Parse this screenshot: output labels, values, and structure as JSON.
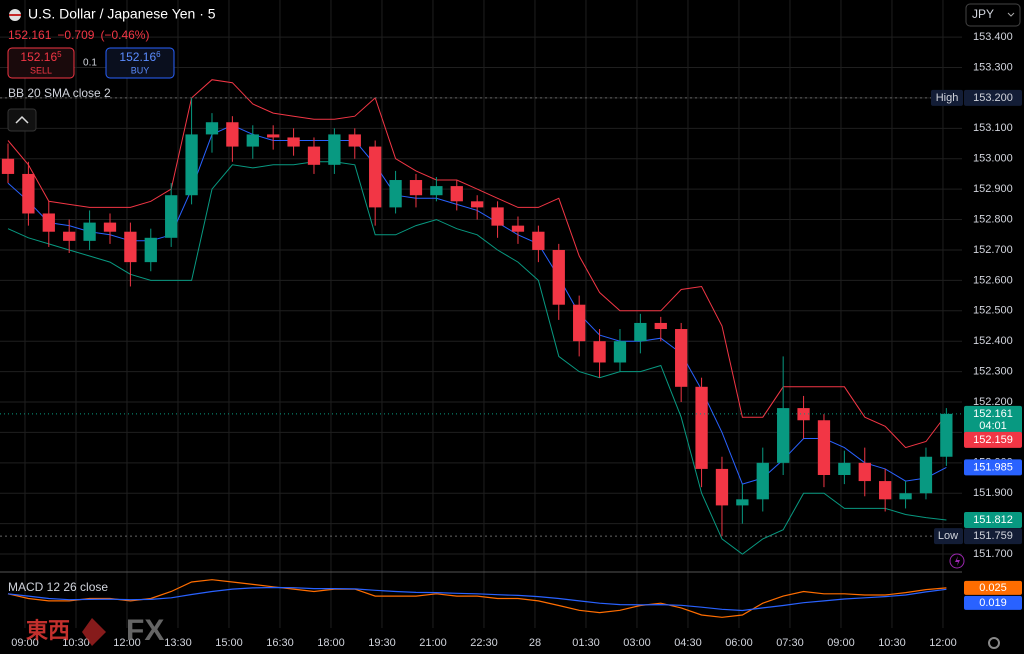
{
  "header": {
    "title": "U.S. Dollar / Japanese Yen · 5",
    "last": "152.161",
    "change": "−0.709",
    "change_pct": "(−0.46%)"
  },
  "trade": {
    "sell": {
      "price": "152.16",
      "pip": "5",
      "label": "SELL"
    },
    "spread": "0.1",
    "buy": {
      "price": "152.16",
      "pip": "6",
      "label": "BUY"
    }
  },
  "currency": "JPY",
  "watermark": {
    "cn": "東西",
    "fx": "FX"
  },
  "chart_data": [
    {
      "type": "candlestick",
      "title": "BB 20 SMA close 2",
      "x": [
        -0.5,
        0.1,
        0.7,
        1.3,
        1.9,
        2.5,
        3.1,
        3.7,
        4.3,
        4.9,
        5.5,
        6.1,
        6.7,
        7.3,
        7.9,
        8.5,
        9.1,
        9.7,
        10.3,
        10.9,
        11.5,
        12.1,
        12.7,
        13.3,
        13.9,
        14.5,
        15.1,
        15.7,
        16.3,
        16.9,
        17.5,
        18.1,
        18.7,
        19.3,
        19.9,
        20.5,
        21.1,
        21.7,
        22.3,
        22.9,
        23.5,
        24.1,
        24.7,
        25.3,
        25.9,
        26.5,
        27.1
      ],
      "open": [
        153.0,
        152.95,
        152.82,
        152.76,
        152.73,
        152.79,
        152.76,
        152.66,
        152.74,
        152.88,
        153.08,
        153.12,
        153.04,
        153.08,
        153.07,
        153.04,
        152.98,
        153.08,
        153.04,
        152.84,
        152.93,
        152.88,
        152.91,
        152.86,
        152.84,
        152.78,
        152.76,
        152.7,
        152.52,
        152.4,
        152.33,
        152.4,
        152.46,
        152.44,
        152.25,
        151.98,
        151.86,
        151.88,
        152.0,
        152.18,
        152.14,
        151.96,
        152.0,
        151.94,
        151.88,
        151.9,
        152.02
      ],
      "high": [
        153.05,
        152.99,
        152.86,
        152.8,
        152.83,
        152.82,
        152.79,
        152.77,
        152.92,
        153.2,
        153.15,
        153.14,
        153.11,
        153.11,
        153.1,
        153.07,
        153.1,
        153.1,
        153.06,
        152.96,
        152.95,
        152.94,
        152.93,
        152.88,
        152.86,
        152.81,
        152.78,
        152.72,
        152.55,
        152.44,
        152.44,
        152.49,
        152.48,
        152.46,
        152.28,
        152.02,
        151.93,
        152.05,
        152.35,
        152.22,
        152.16,
        152.04,
        152.05,
        151.98,
        151.94,
        152.05,
        152.18
      ],
      "low": [
        152.92,
        152.78,
        152.71,
        152.69,
        152.7,
        152.72,
        152.58,
        152.63,
        152.71,
        152.85,
        153.02,
        152.99,
        153.0,
        153.03,
        153.01,
        152.95,
        152.95,
        153.0,
        152.78,
        152.82,
        152.84,
        152.86,
        152.83,
        152.8,
        152.74,
        152.72,
        152.66,
        152.47,
        152.35,
        152.28,
        152.3,
        152.36,
        152.4,
        152.2,
        151.92,
        151.759,
        151.8,
        151.84,
        151.96,
        152.08,
        151.92,
        151.93,
        151.89,
        151.84,
        151.85,
        151.88,
        151.99
      ],
      "close": [
        152.95,
        152.82,
        152.76,
        152.73,
        152.79,
        152.76,
        152.66,
        152.74,
        152.88,
        153.08,
        153.12,
        153.04,
        153.08,
        153.07,
        153.04,
        152.98,
        153.08,
        153.04,
        152.84,
        152.93,
        152.88,
        152.91,
        152.86,
        152.84,
        152.78,
        152.76,
        152.7,
        152.52,
        152.4,
        152.33,
        152.4,
        152.46,
        152.44,
        152.25,
        151.98,
        151.86,
        151.88,
        152.0,
        152.18,
        152.14,
        151.96,
        152.0,
        151.94,
        151.88,
        151.9,
        152.02,
        152.161
      ],
      "up_color": "#089981",
      "down_color": "#f23645",
      "bands": [
        {
          "color": "#f23645",
          "values": [
            153.06,
            152.98,
            152.86,
            152.85,
            152.84,
            152.84,
            152.84,
            152.86,
            152.9,
            153.2,
            153.26,
            153.25,
            153.18,
            153.15,
            153.14,
            153.13,
            153.13,
            153.14,
            153.2,
            153.0,
            152.96,
            152.93,
            152.93,
            152.9,
            152.87,
            152.84,
            152.84,
            152.87,
            152.68,
            152.56,
            152.5,
            152.5,
            152.5,
            152.57,
            152.58,
            152.45,
            152.15,
            152.15,
            152.25,
            152.25,
            152.25,
            152.25,
            152.15,
            152.12,
            152.05,
            152.07,
            152.159
          ]
        },
        {
          "color": "#2962ff",
          "values": [
            152.92,
            152.86,
            152.79,
            152.78,
            152.76,
            152.75,
            152.73,
            152.73,
            152.75,
            152.9,
            153.08,
            153.11,
            153.08,
            153.06,
            153.06,
            153.06,
            153.06,
            153.06,
            152.98,
            152.88,
            152.87,
            152.87,
            152.85,
            152.83,
            152.79,
            152.75,
            152.72,
            152.61,
            152.49,
            152.42,
            152.4,
            152.4,
            152.41,
            152.36,
            152.24,
            152.1,
            151.93,
            151.95,
            152.01,
            152.08,
            152.08,
            152.05,
            152.0,
            151.98,
            151.94,
            151.95,
            151.985
          ]
        },
        {
          "color": "#089981",
          "values": [
            152.77,
            152.74,
            152.72,
            152.7,
            152.68,
            152.66,
            152.62,
            152.6,
            152.6,
            152.6,
            152.9,
            152.98,
            152.97,
            152.98,
            152.98,
            152.99,
            152.99,
            152.98,
            152.75,
            152.75,
            152.78,
            152.8,
            152.77,
            152.75,
            152.7,
            152.66,
            152.6,
            152.35,
            152.3,
            152.28,
            152.3,
            152.3,
            152.32,
            152.15,
            151.9,
            151.75,
            151.7,
            151.75,
            151.78,
            151.9,
            151.9,
            151.85,
            151.85,
            151.85,
            151.83,
            151.82,
            151.812
          ]
        }
      ],
      "xlim": [
        -0.735,
        27.56
      ],
      "xticks": [
        {
          "value": 0,
          "label": "09:00"
        },
        {
          "value": 1.5,
          "label": "10:30"
        },
        {
          "value": 3,
          "label": "12:00"
        },
        {
          "value": 4.5,
          "label": "13:30"
        },
        {
          "value": 6,
          "label": "15:00"
        },
        {
          "value": 7.5,
          "label": "16:30"
        },
        {
          "value": 9,
          "label": "18:00"
        },
        {
          "value": 10.5,
          "label": "19:30"
        },
        {
          "value": 12,
          "label": "21:00"
        },
        {
          "value": 13.5,
          "label": "22:30"
        },
        {
          "value": 15,
          "label": "28"
        },
        {
          "value": 16.5,
          "label": "01:30"
        },
        {
          "value": 18,
          "label": "03:00"
        },
        {
          "value": 19.5,
          "label": "04:30"
        },
        {
          "value": 21,
          "label": "06:00"
        },
        {
          "value": 22.5,
          "label": "07:30"
        },
        {
          "value": 24,
          "label": "09:00"
        },
        {
          "value": 25.5,
          "label": "10:30"
        },
        {
          "value": 27,
          "label": "12:00"
        }
      ],
      "ylim": [
        151.641,
        153.522
      ],
      "yticks": [
        {
          "value": 151.7,
          "label": "151.700"
        },
        {
          "value": 151.8,
          "label": "151.800"
        },
        {
          "value": 151.9,
          "label": "151.900"
        },
        {
          "value": 152.0,
          "label": "152.000"
        },
        {
          "value": 152.1,
          "label": "152.100"
        },
        {
          "value": 152.2,
          "label": "152.200"
        },
        {
          "value": 152.3,
          "label": "152.300"
        },
        {
          "value": 152.4,
          "label": "152.400"
        },
        {
          "value": 152.5,
          "label": "152.500"
        },
        {
          "value": 152.6,
          "label": "152.600"
        },
        {
          "value": 152.7,
          "label": "152.700"
        },
        {
          "value": 152.8,
          "label": "152.800"
        },
        {
          "value": 152.9,
          "label": "152.900"
        },
        {
          "value": 153.0,
          "label": "153.000"
        },
        {
          "value": 153.1,
          "label": "153.100"
        },
        {
          "value": 153.2,
          "label": "153.200"
        },
        {
          "value": 153.3,
          "label": "153.300"
        },
        {
          "value": 153.4,
          "label": "153.400"
        }
      ],
      "grid": true,
      "high_marker": {
        "label": "High",
        "value": 153.2,
        "value_label": "153.200"
      },
      "low_marker": {
        "label": "Low",
        "value": 151.759
      },
      "countdown": "04:01"
    },
    {
      "type": "line",
      "title": "MACD 12 26 close",
      "ylim": [
        -0.12,
        0.08
      ],
      "series": [
        {
          "color": "#ff6d00",
          "values": [
            0.0,
            -0.02,
            -0.03,
            -0.03,
            -0.02,
            -0.02,
            -0.03,
            -0.02,
            0.01,
            0.05,
            0.06,
            0.05,
            0.04,
            0.03,
            0.02,
            0.01,
            0.02,
            0.02,
            -0.01,
            -0.01,
            -0.01,
            0.0,
            -0.01,
            -0.01,
            -0.02,
            -0.02,
            -0.03,
            -0.05,
            -0.07,
            -0.08,
            -0.07,
            -0.05,
            -0.04,
            -0.06,
            -0.09,
            -0.1,
            -0.09,
            -0.04,
            -0.01,
            0.01,
            0.0,
            0.0,
            -0.005,
            -0.005,
            0.005,
            0.018,
            0.025
          ]
        },
        {
          "color": "#2962ff",
          "values": [
            0.0,
            -0.01,
            -0.02,
            -0.025,
            -0.024,
            -0.023,
            -0.025,
            -0.024,
            -0.017,
            -0.003,
            0.01,
            0.02,
            0.025,
            0.027,
            0.026,
            0.022,
            0.022,
            0.021,
            0.015,
            0.01,
            0.006,
            0.005,
            0.002,
            0.0,
            -0.004,
            -0.007,
            -0.012,
            -0.02,
            -0.03,
            -0.04,
            -0.046,
            -0.047,
            -0.046,
            -0.049,
            -0.057,
            -0.066,
            -0.071,
            -0.06,
            -0.05,
            -0.038,
            -0.03,
            -0.022,
            -0.017,
            -0.012,
            -0.005,
            0.008,
            0.019
          ]
        }
      ]
    }
  ]
}
